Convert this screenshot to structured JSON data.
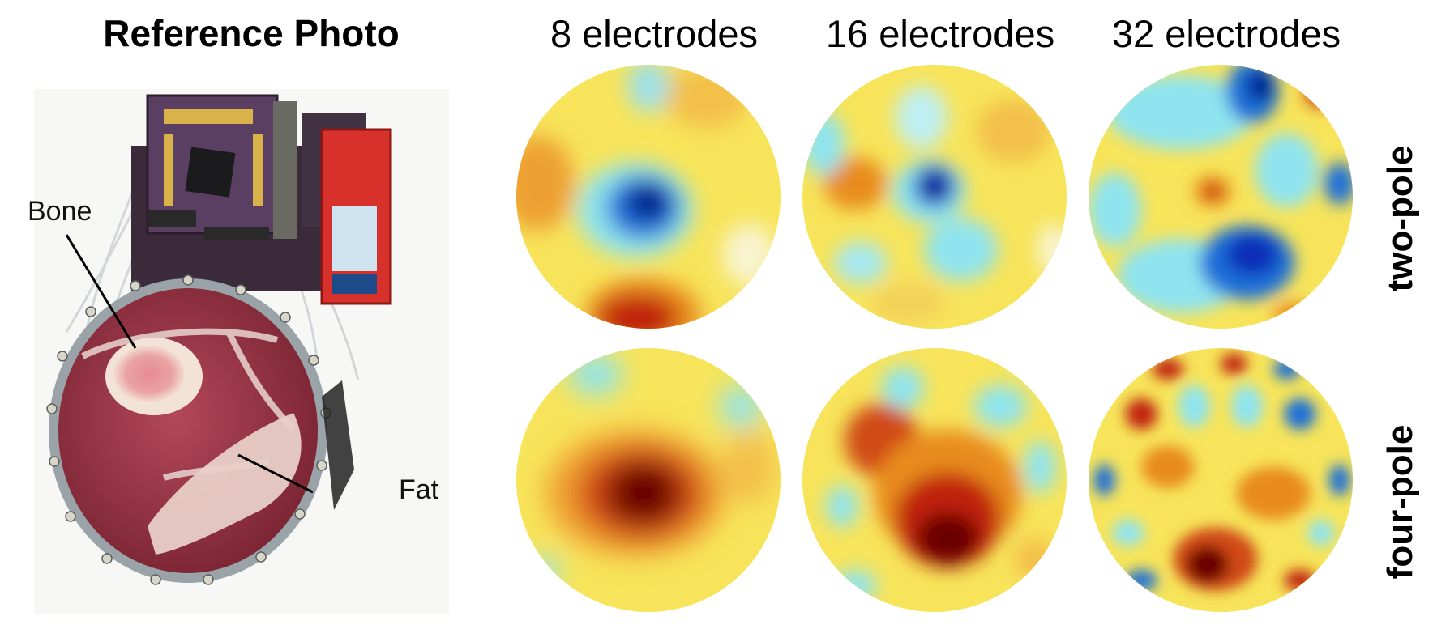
{
  "reference": {
    "title": "Reference Photo",
    "labels": {
      "bone": "Bone",
      "fat": "Fat"
    }
  },
  "columns": [
    "8 electrodes",
    "16 electrodes",
    "32 electrodes"
  ],
  "rows": [
    "two-pole",
    "four-pole"
  ],
  "colors": {
    "base_yellow": "#f7e45a",
    "orange": "#e88b1f",
    "red": "#c0210f",
    "dark_red": "#6b0000",
    "light_blue": "#8fe4ef",
    "blue": "#1a6fd8",
    "dark_blue": "#031a8a",
    "meat": "#9b3a46",
    "bone": "#f2d3c4",
    "board_purple": "#4a3350",
    "board_red": "#d8302a"
  }
}
